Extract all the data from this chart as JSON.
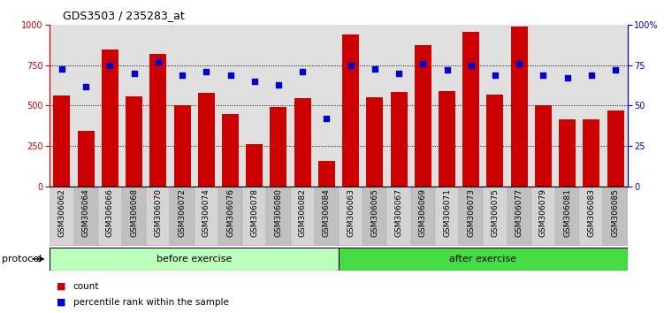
{
  "title": "GDS3503 / 235283_at",
  "categories": [
    "GSM306062",
    "GSM306064",
    "GSM306066",
    "GSM306068",
    "GSM306070",
    "GSM306072",
    "GSM306074",
    "GSM306076",
    "GSM306078",
    "GSM306080",
    "GSM306082",
    "GSM306084",
    "GSM306063",
    "GSM306065",
    "GSM306067",
    "GSM306069",
    "GSM306071",
    "GSM306073",
    "GSM306075",
    "GSM306077",
    "GSM306079",
    "GSM306081",
    "GSM306083",
    "GSM306085"
  ],
  "counts": [
    565,
    345,
    850,
    560,
    820,
    500,
    580,
    450,
    260,
    490,
    545,
    155,
    940,
    550,
    585,
    875,
    590,
    960,
    570,
    990,
    500,
    415,
    415,
    470
  ],
  "percentiles": [
    73,
    62,
    75,
    70,
    77,
    69,
    71,
    69,
    65,
    63,
    71,
    42,
    75,
    73,
    70,
    76,
    72,
    75,
    69,
    76,
    69,
    67,
    69,
    72
  ],
  "bar_color": "#cc0000",
  "dot_color": "#0000cc",
  "protocol_groups": [
    {
      "label": "before exercise",
      "start": 0,
      "end": 12,
      "color": "#bbffbb"
    },
    {
      "label": "after exercise",
      "start": 12,
      "end": 24,
      "color": "#44dd44"
    }
  ],
  "ylim_left": [
    0,
    1000
  ],
  "ylim_right": [
    0,
    100
  ],
  "yticks_left": [
    0,
    250,
    500,
    750,
    1000
  ],
  "yticks_right": [
    0,
    25,
    50,
    75,
    100
  ],
  "grid_values": [
    250,
    500,
    750
  ],
  "background_color": "#ffffff",
  "plot_bg_color": "#e0e0e0",
  "legend_count_label": "count",
  "legend_pct_label": "percentile rank within the sample",
  "protocol_label": "protocol",
  "title_fontsize": 9,
  "tick_fontsize": 7,
  "label_fontsize": 6.5,
  "legend_fontsize": 7.5,
  "protocol_fontsize": 8
}
